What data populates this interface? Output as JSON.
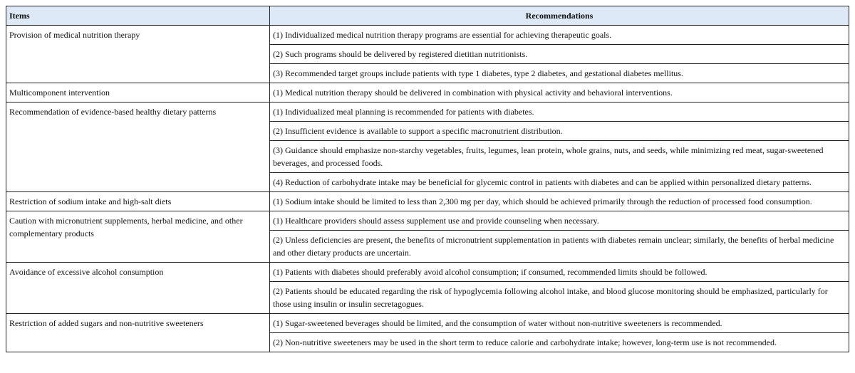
{
  "header": {
    "items": "Items",
    "recommendations": "Recommendations"
  },
  "groups": [
    {
      "item": "Provision of medical nutrition therapy",
      "recommendations": [
        "(1) Individualized medical nutrition therapy programs are essential for achieving therapeutic goals.",
        "(2) Such programs should be delivered by registered dietitian nutritionists.",
        "(3) Recommended target groups include patients with type 1 diabetes, type 2 diabetes, and gestational diabetes mellitus."
      ]
    },
    {
      "item": "Multicomponent intervention",
      "recommendations": [
        "(1) Medical nutrition therapy should be delivered in combination with physical activity and behavioral interventions."
      ]
    },
    {
      "item": "Recommendation of evidence-based healthy dietary patterns",
      "recommendations": [
        "(1) Individualized meal planning is recommended for patients with diabetes.",
        "(2) Insufficient evidence is available to support a specific macronutrient distribution.",
        "(3) Guidance should emphasize non-starchy vegetables, fruits, legumes, lean protein, whole grains, nuts, and seeds, while minimizing red meat, sugar-sweetened beverages, and processed foods.",
        "(4) Reduction of carbohydrate intake may be beneficial for glycemic control in patients with diabetes and can be applied within personalized dietary patterns."
      ]
    },
    {
      "item": "Restriction of sodium intake and high-salt diets",
      "recommendations": [
        "(1) Sodium intake should be limited to less than 2,300 mg per day, which should be achieved primarily through the reduction of processed food consumption."
      ]
    },
    {
      "item": "Caution with micronutrient supplements, herbal medicine, and other complementary products",
      "recommendations": [
        "(1) Healthcare providers should assess supplement use and provide counseling when necessary.",
        "(2) Unless deficiencies are present, the benefits of micronutrient supplementation in patients with diabetes remain unclear; similarly, the benefits of herbal medicine and other dietary products are uncertain."
      ]
    },
    {
      "item": "Avoidance of excessive alcohol consumption",
      "recommendations": [
        "(1) Patients with diabetes should preferably avoid alcohol consumption; if consumed, recommended limits should be followed.",
        "(2) Patients should be educated regarding the risk of hypoglycemia following alcohol intake, and blood glucose monitoring should be emphasized, particularly for those using insulin or insulin secretagogues."
      ]
    },
    {
      "item": "Restriction of added sugars and non-nutritive sweeteners",
      "recommendations": [
        "(1) Sugar-sweetened beverages should be limited, and the consumption of water without non-nutritive sweeteners is recommended.",
        "(2) Non-nutritive sweeteners may be used in the short term to reduce calorie and carbohydrate intake; however, long-term use is not recommended."
      ]
    }
  ]
}
